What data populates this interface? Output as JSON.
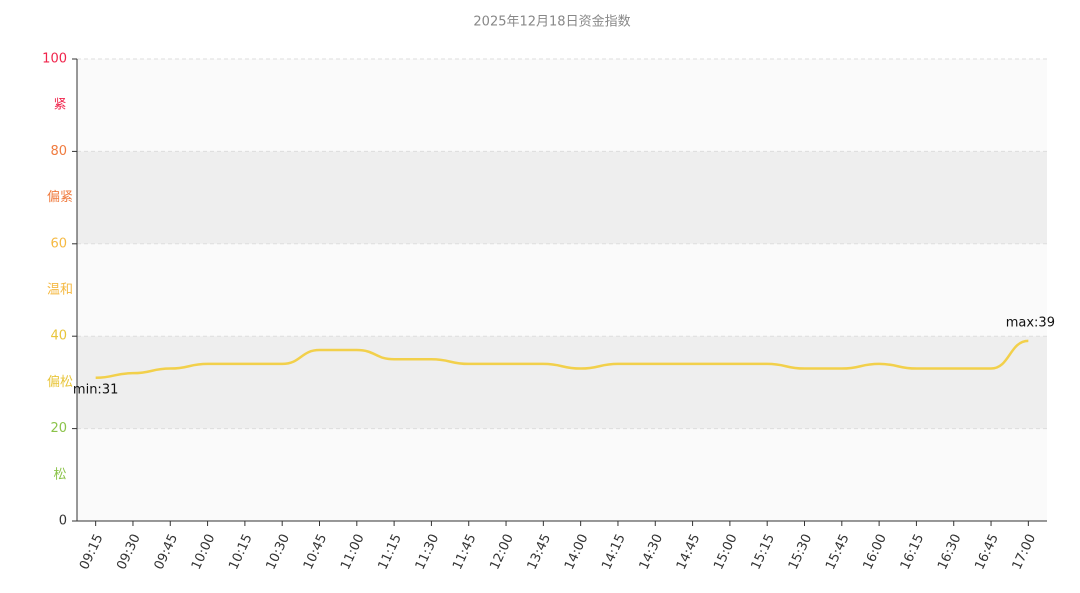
{
  "chart_data": {
    "type": "line",
    "title": "2025年12月18日资金指数",
    "categories": [
      "09:15",
      "09:30",
      "09:45",
      "10:00",
      "10:15",
      "10:30",
      "10:45",
      "11:00",
      "11:15",
      "11:30",
      "11:45",
      "12:00",
      "13:45",
      "14:00",
      "14:15",
      "14:30",
      "14:45",
      "15:00",
      "15:15",
      "15:30",
      "15:45",
      "16:00",
      "16:15",
      "16:30",
      "16:45",
      "17:00"
    ],
    "series": [
      {
        "color": "#f2d04b",
        "values": [
          31,
          32,
          33,
          34,
          34,
          34,
          37,
          37,
          35,
          35,
          34,
          34,
          34,
          33,
          34,
          34,
          34,
          34,
          34,
          33,
          33,
          34,
          33,
          33,
          33,
          39
        ]
      }
    ],
    "ylim": [
      0,
      100
    ],
    "yticks": [
      0,
      20,
      40,
      60,
      80,
      100
    ],
    "ytick_colors": [
      "#333333",
      "#8bc34a",
      "#e8c53a",
      "#f5b942",
      "#f07b3f",
      "#f0234b"
    ],
    "bands": [
      {
        "from": 0,
        "to": 20,
        "label": "松",
        "color": "#8bc34a",
        "fill": "#fafafa"
      },
      {
        "from": 20,
        "to": 40,
        "label": "偏松",
        "color": "#e8c53a",
        "fill": "#eeeeee"
      },
      {
        "from": 40,
        "to": 60,
        "label": "温和",
        "color": "#f5b942",
        "fill": "#fafafa"
      },
      {
        "from": 60,
        "to": 80,
        "label": "偏紧",
        "color": "#f07b3f",
        "fill": "#eeeeee"
      },
      {
        "from": 80,
        "to": 100,
        "label": "紧",
        "color": "#f0234b",
        "fill": "#fafafa"
      }
    ],
    "annotations": [
      {
        "text": "min:31",
        "index": 0
      },
      {
        "text": "max:39",
        "index": 25
      }
    ],
    "grid": true
  }
}
